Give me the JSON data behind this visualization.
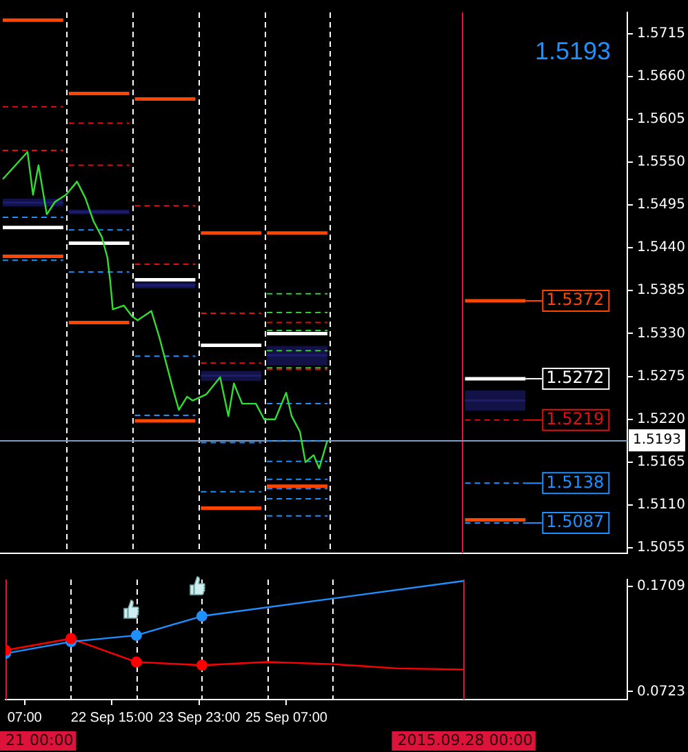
{
  "chart_data": [
    {
      "type": "line",
      "xlim": [
        "2015-09-21T00:00",
        "2015-09-30T12:00"
      ],
      "ylim": [
        1.5048,
        1.5742
      ],
      "tick_labels": "y",
      "yticks": [
        1.5715,
        {
          "value": 1.566,
          "label": "1.5660"
        },
        1.5605,
        {
          "value": 1.555,
          "label": "1.5550"
        },
        1.5495,
        {
          "value": 1.544,
          "label": "1.5440"
        },
        1.5385,
        {
          "value": 1.533,
          "label": "1.5330"
        },
        1.5275,
        {
          "value": 1.522,
          "label": "1.5220"
        },
        1.5165,
        {
          "value": 1.511,
          "label": "1.5110"
        },
        1.5055
      ],
      "annotations": [
        "1.5193"
      ],
      "ref_lines": [
        {
          "axis": "x",
          "value": "2015-09-22T00:00",
          "color": "#ffffff",
          "line_style": "dashed"
        },
        {
          "axis": "x",
          "value": "2015-09-23T00:00",
          "color": "#ffffff",
          "line_style": "dashed"
        },
        {
          "axis": "x",
          "value": "2015-09-24T00:00",
          "color": "#ffffff",
          "line_style": "dashed"
        },
        {
          "axis": "x",
          "value": "2015-09-25T00:00",
          "color": "#ffffff",
          "line_style": "dashed"
        },
        {
          "axis": "x",
          "value": "2015-09-26T00:00",
          "color": "#ffffff",
          "line_style": "dashed"
        },
        {
          "axis": "x",
          "value": "2015-09-28T00:00",
          "color": "#dc143c",
          "line_style": "solid"
        },
        {
          "axis": "y",
          "value": 1.5193,
          "label": "1.5193",
          "color": "#7f9fc0",
          "line_style": "solid"
        }
      ],
      "series": [
        {
          "color": "#33dd33",
          "line_style": "solid",
          "x": [
            "2015-09-21T01:00",
            "2015-09-21T10:00",
            "2015-09-21T12:00",
            "2015-09-21T14:00",
            "2015-09-21T17:00",
            "2015-09-21T20:00",
            "2015-09-22T00:00",
            "2015-09-22T04:00",
            "2015-09-22T07:00",
            "2015-09-22T10:00",
            "2015-09-22T13:00",
            "2015-09-22T15:00",
            "2015-09-22T16:00",
            "2015-09-22T17:00",
            "2015-09-22T21:00",
            "2015-09-23T00:00",
            "2015-09-23T02:00",
            "2015-09-23T07:00",
            "2015-09-23T10:00",
            "2015-09-23T15:00",
            "2015-09-23T17:00",
            "2015-09-23T20:00",
            "2015-09-23T22:00",
            "2015-09-24T03:00",
            "2015-09-24T08:00",
            "2015-09-24T11:00",
            "2015-09-24T13:00",
            "2015-09-24T16:00",
            "2015-09-24T21:00",
            "2015-09-25T00:00",
            "2015-09-25T04:00",
            "2015-09-25T08:00",
            "2015-09-25T10:00",
            "2015-09-25T13:00",
            "2015-09-25T15:00",
            "2015-09-25T18:00",
            "2015-09-25T20:00",
            "2015-09-25T23:00"
          ],
          "values": [
            1.5528,
            1.5563,
            1.5508,
            1.5546,
            1.5483,
            1.5499,
            1.5508,
            1.5525,
            1.5504,
            1.5474,
            1.5454,
            1.5428,
            1.5399,
            1.5361,
            1.5366,
            1.5352,
            1.5347,
            1.5359,
            1.5324,
            1.5257,
            1.5232,
            1.5249,
            1.5244,
            1.5252,
            1.5274,
            1.5224,
            1.5266,
            1.524,
            1.524,
            1.522,
            1.522,
            1.5254,
            1.5224,
            1.5204,
            1.5165,
            1.5174,
            1.5157,
            1.5193
          ]
        },
        {
          "color": "#ff4500",
          "line_style": "solid",
          "x": [
            "2015-09-21T01:00",
            "2015-09-21T23:00"
          ],
          "values": [
            1.5732,
            1.5732
          ]
        },
        {
          "color": "#ff4500",
          "line_style": "solid",
          "x": [
            "2015-09-21T01:00",
            "2015-09-21T23:00"
          ],
          "values": [
            1.5429,
            1.5429
          ]
        },
        {
          "color": "#e01010",
          "line_style": "dashed",
          "x": [
            "2015-09-21T01:00",
            "2015-09-21T23:00"
          ],
          "values": [
            1.5621,
            1.5621
          ]
        },
        {
          "color": "#e01010",
          "line_style": "dashed",
          "x": [
            "2015-09-21T01:00",
            "2015-09-21T23:00"
          ],
          "values": [
            1.5565,
            1.5565
          ]
        },
        {
          "color": "#1e90ff",
          "line_style": "dashed",
          "x": [
            "2015-09-21T01:00",
            "2015-09-21T23:00"
          ],
          "values": [
            1.5479,
            1.5479
          ]
        },
        {
          "color": "#1e90ff",
          "line_style": "dashed",
          "x": [
            "2015-09-21T01:00",
            "2015-09-21T23:00"
          ],
          "values": [
            1.5424,
            1.5424
          ]
        },
        {
          "color": "#ffffff",
          "line_style": "solid",
          "x": [
            "2015-09-21T01:00",
            "2015-09-21T23:00"
          ],
          "values": [
            1.5466,
            1.5466
          ]
        },
        {
          "color": "#1c1c70",
          "x": [
            "2015-09-21T01:00",
            "2015-09-21T23:00"
          ],
          "values": [
            1.5498,
            1.5498
          ],
          "lower": [
            1.5493,
            1.5493
          ],
          "upper": [
            1.5503,
            1.5503
          ]
        },
        {
          "color": "#ff4500",
          "line_style": "solid",
          "x": [
            "2015-09-22T01:00",
            "2015-09-22T23:00"
          ],
          "values": [
            1.5638,
            1.5638
          ]
        },
        {
          "color": "#ff4500",
          "line_style": "solid",
          "x": [
            "2015-09-22T01:00",
            "2015-09-22T23:00"
          ],
          "values": [
            1.5344,
            1.5344
          ]
        },
        {
          "color": "#e01010",
          "line_style": "dashed",
          "x": [
            "2015-09-22T01:00",
            "2015-09-22T23:00"
          ],
          "values": [
            1.56,
            1.56
          ]
        },
        {
          "color": "#e01010",
          "line_style": "dashed",
          "x": [
            "2015-09-22T01:00",
            "2015-09-22T23:00"
          ],
          "values": [
            1.5546,
            1.5546
          ]
        },
        {
          "color": "#1e90ff",
          "line_style": "dashed",
          "x": [
            "2015-09-22T01:00",
            "2015-09-22T23:00"
          ],
          "values": [
            1.5463,
            1.5463
          ]
        },
        {
          "color": "#1e90ff",
          "line_style": "dashed",
          "x": [
            "2015-09-22T01:00",
            "2015-09-22T23:00"
          ],
          "values": [
            1.5409,
            1.5409
          ]
        },
        {
          "color": "#ffffff",
          "line_style": "solid",
          "x": [
            "2015-09-22T01:00",
            "2015-09-22T23:00"
          ],
          "values": [
            1.5446,
            1.5446
          ]
        },
        {
          "color": "#1c1c70",
          "x": [
            "2015-09-22T01:00",
            "2015-09-22T23:00"
          ],
          "values": [
            1.5486,
            1.5486
          ],
          "lower": [
            1.5483,
            1.5483
          ],
          "upper": [
            1.5489,
            1.5489
          ]
        },
        {
          "color": "#ff4500",
          "line_style": "solid",
          "x": [
            "2015-09-23T01:00",
            "2015-09-23T23:00"
          ],
          "values": [
            1.5631,
            1.5631
          ]
        },
        {
          "color": "#ff4500",
          "line_style": "solid",
          "x": [
            "2015-09-23T01:00",
            "2015-09-23T23:00"
          ],
          "values": [
            1.5218,
            1.5218
          ]
        },
        {
          "color": "#e01010",
          "line_style": "dashed",
          "x": [
            "2015-09-23T01:00",
            "2015-09-23T23:00"
          ],
          "values": [
            1.5494,
            1.5494
          ]
        },
        {
          "color": "#e01010",
          "line_style": "dashed",
          "x": [
            "2015-09-23T01:00",
            "2015-09-23T23:00"
          ],
          "values": [
            1.5419,
            1.5419
          ]
        },
        {
          "color": "#ffffff",
          "line_style": "solid",
          "x": [
            "2015-09-23T01:00",
            "2015-09-23T23:00"
          ],
          "values": [
            1.5399,
            1.5399
          ]
        },
        {
          "color": "#1c1c70",
          "x": [
            "2015-09-23T01:00",
            "2015-09-23T23:00"
          ],
          "values": [
            1.5392,
            1.5392
          ],
          "lower": [
            1.5388,
            1.5388
          ],
          "upper": [
            1.5396,
            1.5396
          ]
        },
        {
          "color": "#1e90ff",
          "line_style": "dashed",
          "x": [
            "2015-09-23T01:00",
            "2015-09-23T23:00"
          ],
          "values": [
            1.5301,
            1.5301
          ]
        },
        {
          "color": "#1e90ff",
          "line_style": "dashed",
          "x": [
            "2015-09-23T01:00",
            "2015-09-23T23:00"
          ],
          "values": [
            1.5225,
            1.5225
          ]
        },
        {
          "color": "#ff4500",
          "line_style": "solid",
          "x": [
            "2015-09-24T01:00",
            "2015-09-24T23:00"
          ],
          "values": [
            1.5459,
            1.5459
          ]
        },
        {
          "color": "#ff4500",
          "line_style": "solid",
          "x": [
            "2015-09-24T01:00",
            "2015-09-24T23:00"
          ],
          "values": [
            1.5106,
            1.5106
          ]
        },
        {
          "color": "#e01010",
          "line_style": "dashed",
          "x": [
            "2015-09-24T01:00",
            "2015-09-24T23:00"
          ],
          "values": [
            1.5356,
            1.5356
          ]
        },
        {
          "color": "#e01010",
          "line_style": "dashed",
          "x": [
            "2015-09-24T01:00",
            "2015-09-24T23:00"
          ],
          "values": [
            1.5292,
            1.5292
          ]
        },
        {
          "color": "#ffffff",
          "line_style": "solid",
          "x": [
            "2015-09-24T01:00",
            "2015-09-24T23:00"
          ],
          "values": [
            1.5315,
            1.5315
          ]
        },
        {
          "color": "#1c1c70",
          "x": [
            "2015-09-24T01:00",
            "2015-09-24T23:00"
          ],
          "values": [
            1.5276,
            1.5276
          ],
          "lower": [
            1.5269,
            1.5269
          ],
          "upper": [
            1.5282,
            1.5282
          ]
        },
        {
          "color": "#1e90ff",
          "line_style": "dashed",
          "x": [
            "2015-09-24T01:00",
            "2015-09-24T23:00"
          ],
          "values": [
            1.519,
            1.519
          ]
        },
        {
          "color": "#1e90ff",
          "line_style": "dashed",
          "x": [
            "2015-09-24T01:00",
            "2015-09-24T23:00"
          ],
          "values": [
            1.5127,
            1.5127
          ]
        },
        {
          "color": "#ff4500",
          "line_style": "solid",
          "x": [
            "2015-09-25T01:00",
            "2015-09-25T23:00"
          ],
          "values": [
            1.5459,
            1.5459
          ]
        },
        {
          "color": "#ff4500",
          "line_style": "solid",
          "x": [
            "2015-09-25T01:00",
            "2015-09-25T23:00"
          ],
          "values": [
            1.5134,
            1.5134
          ]
        },
        {
          "color": "#e01010",
          "line_style": "dashed",
          "x": [
            "2015-09-25T01:00",
            "2015-09-25T23:00"
          ],
          "values": [
            1.5344,
            1.5344
          ]
        },
        {
          "color": "#e01010",
          "line_style": "dashed",
          "x": [
            "2015-09-25T01:00",
            "2015-09-25T23:00"
          ],
          "values": [
            1.5284,
            1.5284
          ]
        },
        {
          "color": "#ffffff",
          "line_style": "solid",
          "x": [
            "2015-09-25T01:00",
            "2015-09-25T23:00"
          ],
          "values": [
            1.533,
            1.533
          ]
        },
        {
          "color": "#1c1c70",
          "x": [
            "2015-09-25T01:00",
            "2015-09-25T23:00"
          ],
          "values": [
            1.5302,
            1.5302
          ],
          "lower": [
            1.5289,
            1.5289
          ],
          "upper": [
            1.5314,
            1.5314
          ]
        },
        {
          "color": "#32cd32",
          "line_style": "dashed",
          "x": [
            "2015-09-25T01:00",
            "2015-09-25T23:00"
          ],
          "values": [
            1.5381,
            1.5381
          ]
        },
        {
          "color": "#32cd32",
          "line_style": "dashed",
          "x": [
            "2015-09-25T01:00",
            "2015-09-25T23:00"
          ],
          "values": [
            1.5357,
            1.5357
          ]
        },
        {
          "color": "#32cd32",
          "line_style": "dashed",
          "x": [
            "2015-09-25T01:00",
            "2015-09-25T23:00"
          ],
          "values": [
            1.5334,
            1.5334
          ]
        },
        {
          "color": "#32cd32",
          "line_style": "dashed",
          "x": [
            "2015-09-25T01:00",
            "2015-09-25T23:00"
          ],
          "values": [
            1.5308,
            1.5308
          ]
        },
        {
          "color": "#32cd32",
          "line_style": "dashed",
          "x": [
            "2015-09-25T01:00",
            "2015-09-25T23:00"
          ],
          "values": [
            1.5286,
            1.5286
          ]
        },
        {
          "color": "#1e90ff",
          "line_style": "dashed",
          "x": [
            "2015-09-25T01:00",
            "2015-09-25T23:00"
          ],
          "values": [
            1.524,
            1.524
          ]
        },
        {
          "color": "#1e90ff",
          "line_style": "dashed",
          "x": [
            "2015-09-25T01:00",
            "2015-09-25T23:00"
          ],
          "values": [
            1.5192,
            1.5192
          ]
        },
        {
          "color": "#1e90ff",
          "line_style": "dashed",
          "x": [
            "2015-09-25T01:00",
            "2015-09-25T23:00"
          ],
          "values": [
            1.5166,
            1.5166
          ]
        },
        {
          "color": "#1e90ff",
          "line_style": "dashed",
          "x": [
            "2015-09-25T01:00",
            "2015-09-25T23:00"
          ],
          "values": [
            1.5143,
            1.5143
          ]
        },
        {
          "color": "#1e90ff",
          "line_style": "dashed",
          "x": [
            "2015-09-25T01:00",
            "2015-09-25T23:00"
          ],
          "values": [
            1.5131,
            1.5131
          ]
        },
        {
          "color": "#1e90ff",
          "line_style": "dashed",
          "x": [
            "2015-09-25T01:00",
            "2015-09-25T23:00"
          ],
          "values": [
            1.5118,
            1.5118
          ]
        },
        {
          "color": "#1e90ff",
          "line_style": "dashed",
          "x": [
            "2015-09-25T01:00",
            "2015-09-25T23:00"
          ],
          "values": [
            1.5096,
            1.5096
          ]
        },
        {
          "color": "#ff4500",
          "line_style": "solid",
          "x": [
            "2015-09-28T01:00",
            "2015-09-28T23:00"
          ],
          "values": [
            1.5372,
            1.5372
          ],
          "value_labels": [
            null,
            "1.5372"
          ]
        },
        {
          "color": "#ffffff",
          "line_style": "solid",
          "x": [
            "2015-09-28T01:00",
            "2015-09-28T23:00"
          ],
          "values": [
            1.5272,
            1.5272
          ],
          "value_labels": [
            null,
            "1.5272"
          ]
        },
        {
          "color": "#1c1c70",
          "x": [
            "2015-09-28T01:00",
            "2015-09-28T23:00"
          ],
          "values": [
            1.5244,
            1.5244
          ],
          "lower": [
            1.5231,
            1.5231
          ],
          "upper": [
            1.5257,
            1.5257
          ]
        },
        {
          "color": "#e01010",
          "line_style": "dashed",
          "x": [
            "2015-09-28T01:00",
            "2015-09-28T23:00"
          ],
          "values": [
            1.5219,
            1.5219
          ],
          "value_labels": [
            null,
            "1.5219"
          ]
        },
        {
          "color": "#1e90ff",
          "line_style": "dashed",
          "x": [
            "2015-09-28T01:00",
            "2015-09-28T23:00"
          ],
          "values": [
            1.5138,
            1.5138
          ],
          "value_labels": [
            null,
            "1.5138"
          ]
        },
        {
          "color": "#ff4500",
          "line_style": "solid",
          "x": [
            "2015-09-28T01:00",
            "2015-09-28T23:00"
          ],
          "values": [
            1.5091,
            1.5091
          ]
        },
        {
          "color": "#1e90ff",
          "line_style": "dashed",
          "x": [
            "2015-09-28T01:00",
            "2015-09-28T23:00"
          ],
          "values": [
            1.5087,
            1.5087
          ],
          "value_labels": [
            null,
            "1.5087"
          ]
        }
      ]
    },
    {
      "type": "line",
      "xlim": [
        "2015-09-21T00:00",
        "2015-09-30T12:00"
      ],
      "ylim": [
        0.0648,
        0.1773
      ],
      "yticks": [
        0.1709,
        0.0723
      ],
      "xticks": [
        {
          "value": "2015-09-21T07:00",
          "label": "07:00"
        },
        {
          "value": "2015-09-22T15:00",
          "label": "22 Sep 15:00"
        },
        {
          "value": "2015-09-23T23:00",
          "label": "23 Sep 23:00"
        },
        {
          "value": "2015-09-25T07:00",
          "label": "25 Sep 07:00"
        }
      ],
      "ref_lines": [
        {
          "axis": "x",
          "value": "2015-09-21T00:00",
          "label": "21 00:00",
          "color": "#dc143c",
          "line_style": "solid"
        },
        {
          "axis": "x",
          "value": "2015-09-22T00:00",
          "color": "#ffffff",
          "line_style": "dashed"
        },
        {
          "axis": "x",
          "value": "2015-09-23T00:00",
          "color": "#ffffff",
          "line_style": "dashed"
        },
        {
          "axis": "x",
          "value": "2015-09-24T00:00",
          "color": "#ffffff",
          "line_style": "dashed"
        },
        {
          "axis": "x",
          "value": "2015-09-25T00:00",
          "color": "#ffffff",
          "line_style": "dashed"
        },
        {
          "axis": "x",
          "value": "2015-09-26T00:00",
          "color": "#ffffff",
          "line_style": "dashed"
        },
        {
          "axis": "x",
          "value": "2015-09-28T00:00",
          "label": "2015.09.28 00:00",
          "color": "#dc143c",
          "line_style": "solid"
        }
      ],
      "series": [
        {
          "color": "#1e90ff",
          "line_style": "solid",
          "x": [
            "2015-09-21T00:00",
            "2015-09-22T00:00",
            "2015-09-23T00:00",
            "2015-09-24T00:00",
            "2015-09-28T00:00"
          ],
          "values": [
            0.108,
            0.119,
            0.125,
            0.143,
            0.176
          ]
        },
        {
          "color": "#ff0000",
          "line_style": "solid",
          "x": [
            "2015-09-21T00:00",
            "2015-09-22T00:00",
            "2015-09-23T00:00",
            "2015-09-24T00:00",
            "2015-09-25T00:00",
            "2015-09-26T00:00",
            "2015-09-27T00:00",
            "2015-09-28T00:00"
          ],
          "values": [
            0.111,
            0.122,
            0.1,
            0.097,
            0.1,
            0.098,
            0.094,
            0.093
          ]
        },
        {
          "type": "scatter",
          "color": "#1e90ff",
          "marker": "circle",
          "x": [
            "2015-09-21T00:00",
            "2015-09-22T00:00",
            "2015-09-23T00:00",
            "2015-09-24T00:00"
          ],
          "values": [
            0.108,
            0.119,
            0.125,
            0.143
          ]
        },
        {
          "type": "scatter",
          "color": "#ff0000",
          "marker": "circle",
          "x": [
            "2015-09-21T00:00",
            "2015-09-22T00:00",
            "2015-09-23T00:00",
            "2015-09-24T00:00"
          ],
          "values": [
            0.111,
            0.122,
            0.1,
            0.097
          ]
        }
      ]
    }
  ]
}
